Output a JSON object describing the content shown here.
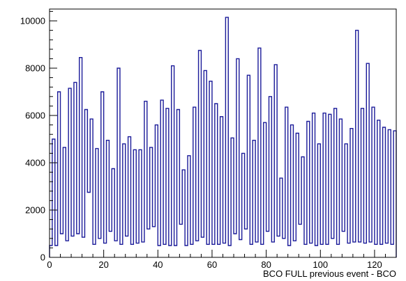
{
  "chart_data": {
    "type": "histogram",
    "title": "",
    "xlabel": "BCO  FULL previous event - BCO",
    "ylabel": "",
    "xlim": [
      0,
      128
    ],
    "ylim": [
      0,
      10500
    ],
    "line_color": "#1a1a99",
    "frame_color": "#000000",
    "grid": false,
    "x_ticks": [
      0,
      20,
      40,
      60,
      80,
      100,
      120
    ],
    "x_tick_labels": [
      "0",
      "20",
      "40",
      "60",
      "80",
      "100",
      "120"
    ],
    "y_ticks": [
      0,
      2000,
      4000,
      6000,
      8000,
      10000
    ],
    "y_tick_labels": [
      "0",
      "2000",
      "4000",
      "6000",
      "8000",
      "10000"
    ],
    "bin_width": 1,
    "bin_start": 0,
    "values": [
      500,
      5000,
      500,
      7000,
      1000,
      4650,
      700,
      7150,
      900,
      7400,
      1000,
      8450,
      850,
      6250,
      2750,
      5850,
      550,
      4600,
      800,
      7000,
      600,
      4950,
      1100,
      3750,
      700,
      8000,
      550,
      4800,
      900,
      5100,
      550,
      4550,
      600,
      4550,
      650,
      6600,
      1200,
      4650,
      1300,
      5600,
      500,
      6650,
      550,
      6300,
      500,
      8100,
      500,
      6250,
      1400,
      3700,
      500,
      4300,
      550,
      6350,
      700,
      8750,
      850,
      7900,
      550,
      7450,
      550,
      6500,
      550,
      5950,
      600,
      10150,
      500,
      5050,
      1000,
      8400,
      750,
      4400,
      1200,
      7700,
      550,
      4950,
      650,
      8850,
      550,
      5700,
      1100,
      6800,
      650,
      8150,
      900,
      3350,
      800,
      6350,
      500,
      5600,
      700,
      5250,
      1400,
      4250,
      550,
      5750,
      600,
      6100,
      500,
      4800,
      550,
      6100,
      550,
      6050,
      800,
      6300,
      550,
      5850,
      1100,
      4800,
      600,
      5450,
      650,
      9600,
      650,
      6300,
      600,
      8200,
      650,
      6350,
      550,
      5800,
      550,
      5500,
      600,
      5400,
      550,
      5350
    ]
  }
}
